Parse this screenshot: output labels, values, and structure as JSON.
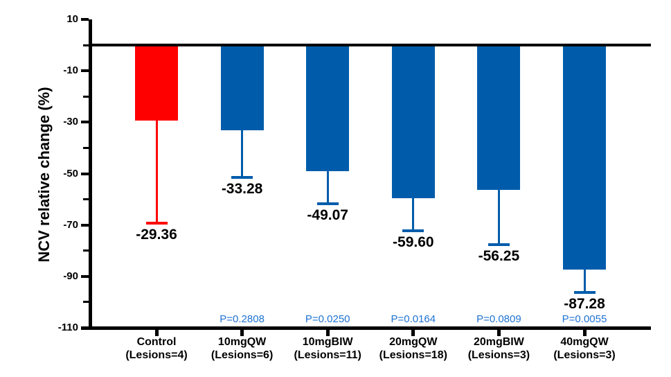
{
  "chart_data": {
    "type": "bar",
    "title": "",
    "ylabel": "NCV relative change (%)",
    "xlabel": "",
    "ylim": [
      -110,
      10
    ],
    "grid": false,
    "legend": false,
    "yticks_major": [
      10,
      -10,
      -30,
      -50,
      -70,
      -90,
      -110
    ],
    "ytick_labels": [
      "10",
      "-10",
      "-30",
      "-50",
      "-70",
      "-90",
      "-110"
    ],
    "yticks_minor": [
      0,
      -20,
      -40,
      -60,
      -80,
      -100
    ],
    "categories": [
      "Control",
      "10mgQW",
      "10mgBIW",
      "20mgQW",
      "20mgBIW",
      "40mgQW"
    ],
    "category_sublabels": [
      "(Lesions=4)",
      "(Lesions=6)",
      "(Lesions=11)",
      "(Lesions=18)",
      "(Lesions=3)",
      "(Lesions=3)"
    ],
    "values": [
      -29.36,
      -33.28,
      -49.07,
      -59.6,
      -56.25,
      -87.28
    ],
    "value_labels": [
      "-29.36",
      "-33.28",
      "-49.07",
      "-59.60",
      "-56.25",
      "-87.28"
    ],
    "error_whisker_low": [
      -69.2,
      -51.5,
      -61.7,
      -72.3,
      -77.6,
      -96.3
    ],
    "p_labels": [
      "",
      "P=0.2808",
      "P=0.0250",
      "P=0.0164",
      "P=0.0809",
      "P=0.0055"
    ],
    "bar_colors": [
      "#ff0000",
      "#005cab",
      "#005cab",
      "#005cab",
      "#005cab",
      "#005cab"
    ],
    "colors": {
      "control_bar": "#ff0000",
      "treatment_bar": "#005cab",
      "p_value_text": "#1e73d2",
      "axis": "#000000",
      "text": "#000000"
    }
  }
}
